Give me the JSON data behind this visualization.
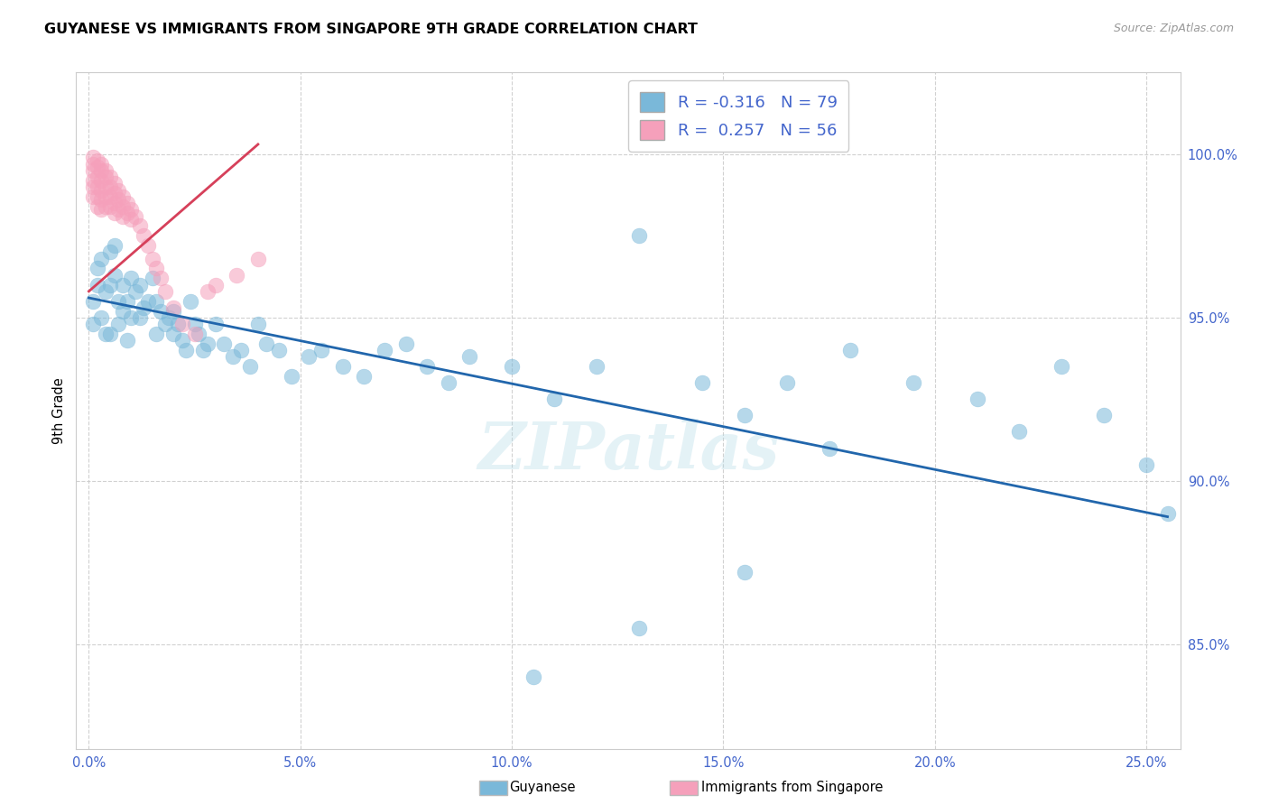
{
  "title": "GUYANESE VS IMMIGRANTS FROM SINGAPORE 9TH GRADE CORRELATION CHART",
  "source": "Source: ZipAtlas.com",
  "legend_blue_label": "Guyanese",
  "legend_pink_label": "Immigrants from Singapore",
  "ylabel": "9th Grade",
  "R_blue": -0.316,
  "N_blue": 79,
  "R_pink": 0.257,
  "N_pink": 56,
  "xlim": [
    -0.003,
    0.258
  ],
  "ylim": [
    0.818,
    1.025
  ],
  "ytick_vals": [
    0.85,
    0.9,
    0.95,
    1.0
  ],
  "xtick_vals": [
    0.0,
    0.05,
    0.1,
    0.15,
    0.2,
    0.25
  ],
  "blue_color": "#7ab8d9",
  "pink_color": "#f5a0bb",
  "blue_line_color": "#2166ac",
  "pink_line_color": "#d6405a",
  "blue_x": [
    0.001,
    0.001,
    0.002,
    0.002,
    0.003,
    0.003,
    0.004,
    0.004,
    0.005,
    0.005,
    0.005,
    0.006,
    0.006,
    0.007,
    0.007,
    0.008,
    0.008,
    0.009,
    0.009,
    0.01,
    0.01,
    0.011,
    0.012,
    0.012,
    0.013,
    0.014,
    0.015,
    0.016,
    0.016,
    0.017,
    0.018,
    0.019,
    0.02,
    0.02,
    0.021,
    0.022,
    0.023,
    0.024,
    0.025,
    0.026,
    0.027,
    0.028,
    0.03,
    0.032,
    0.034,
    0.036,
    0.038,
    0.04,
    0.042,
    0.045,
    0.048,
    0.052,
    0.055,
    0.06,
    0.065,
    0.07,
    0.075,
    0.08,
    0.085,
    0.09,
    0.1,
    0.11,
    0.12,
    0.13,
    0.145,
    0.155,
    0.165,
    0.18,
    0.195,
    0.21,
    0.22,
    0.23,
    0.24,
    0.25,
    0.255,
    0.13,
    0.155,
    0.105,
    0.175
  ],
  "blue_y": [
    0.955,
    0.948,
    0.96,
    0.965,
    0.95,
    0.968,
    0.958,
    0.945,
    0.97,
    0.96,
    0.945,
    0.963,
    0.972,
    0.955,
    0.948,
    0.96,
    0.952,
    0.955,
    0.943,
    0.962,
    0.95,
    0.958,
    0.96,
    0.95,
    0.953,
    0.955,
    0.962,
    0.955,
    0.945,
    0.952,
    0.948,
    0.95,
    0.952,
    0.945,
    0.948,
    0.943,
    0.94,
    0.955,
    0.948,
    0.945,
    0.94,
    0.942,
    0.948,
    0.942,
    0.938,
    0.94,
    0.935,
    0.948,
    0.942,
    0.94,
    0.932,
    0.938,
    0.94,
    0.935,
    0.932,
    0.94,
    0.942,
    0.935,
    0.93,
    0.938,
    0.935,
    0.925,
    0.935,
    0.975,
    0.93,
    0.92,
    0.93,
    0.94,
    0.93,
    0.925,
    0.915,
    0.935,
    0.92,
    0.905,
    0.89,
    0.855,
    0.872,
    0.84,
    0.91
  ],
  "pink_x": [
    0.001,
    0.001,
    0.001,
    0.001,
    0.001,
    0.001,
    0.002,
    0.002,
    0.002,
    0.002,
    0.002,
    0.002,
    0.003,
    0.003,
    0.003,
    0.003,
    0.003,
    0.003,
    0.004,
    0.004,
    0.004,
    0.004,
    0.004,
    0.005,
    0.005,
    0.005,
    0.005,
    0.006,
    0.006,
    0.006,
    0.006,
    0.007,
    0.007,
    0.007,
    0.008,
    0.008,
    0.008,
    0.009,
    0.009,
    0.01,
    0.01,
    0.011,
    0.012,
    0.013,
    0.014,
    0.015,
    0.016,
    0.017,
    0.018,
    0.02,
    0.022,
    0.025,
    0.028,
    0.03,
    0.035,
    0.04
  ],
  "pink_y": [
    0.999,
    0.997,
    0.995,
    0.992,
    0.99,
    0.987,
    0.998,
    0.996,
    0.993,
    0.99,
    0.987,
    0.984,
    0.997,
    0.995,
    0.992,
    0.989,
    0.986,
    0.983,
    0.995,
    0.993,
    0.99,
    0.987,
    0.984,
    0.993,
    0.99,
    0.987,
    0.984,
    0.991,
    0.988,
    0.985,
    0.982,
    0.989,
    0.986,
    0.983,
    0.987,
    0.984,
    0.981,
    0.985,
    0.982,
    0.983,
    0.98,
    0.981,
    0.978,
    0.975,
    0.972,
    0.968,
    0.965,
    0.962,
    0.958,
    0.953,
    0.948,
    0.945,
    0.958,
    0.96,
    0.963,
    0.968
  ],
  "blue_trendline_x0": 0.0,
  "blue_trendline_x1": 0.255,
  "blue_trendline_y0": 0.956,
  "blue_trendline_y1": 0.889,
  "pink_trendline_x0": 0.0,
  "pink_trendline_x1": 0.04,
  "pink_trendline_y0": 0.958,
  "pink_trendline_y1": 1.003,
  "watermark": "ZIPatlas",
  "title_fontsize": 11.5,
  "tick_fontsize": 10.5,
  "tick_color": "#4466cc",
  "grid_color": "#cccccc",
  "legend_fontsize": 13
}
